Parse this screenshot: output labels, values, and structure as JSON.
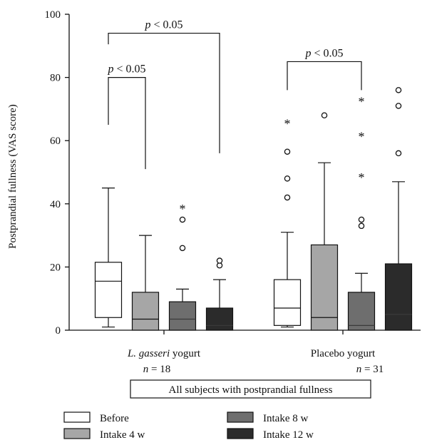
{
  "chart_data": {
    "type": "boxplot",
    "title": "",
    "ylabel": "Postprandial fullness (VAS score)",
    "ylim": [
      0,
      100
    ],
    "yticks": [
      0,
      20,
      40,
      60,
      80,
      100
    ],
    "grid": false,
    "legend_position": "bottom",
    "series": [
      {
        "name": "Before",
        "color": "#ffffff"
      },
      {
        "name": "Intake 4 w",
        "color": "#a6a6a6"
      },
      {
        "name": "Intake 8 w",
        "color": "#6e6e6e"
      },
      {
        "name": "Intake 12 w",
        "color": "#2b2b2b"
      }
    ],
    "groups": [
      {
        "name_italic": "L. gasseri",
        "name_rest": " yogurt",
        "n_label": "n",
        "n_value": "= 18",
        "boxes": [
          {
            "series": "Before",
            "whisker_low": 1,
            "q1": 4,
            "median": 15.5,
            "q3": 21.5,
            "whisker_high": 45,
            "outliers": [],
            "extremes": []
          },
          {
            "series": "Intake 4 w",
            "whisker_low": 0,
            "q1": 0,
            "median": 3.5,
            "q3": 12,
            "whisker_high": 30,
            "outliers": [],
            "extremes": []
          },
          {
            "series": "Intake 8 w",
            "whisker_low": 0,
            "q1": 0,
            "median": 3.5,
            "q3": 9,
            "whisker_high": 13,
            "outliers": [
              26,
              35
            ],
            "extremes": [
              39
            ]
          },
          {
            "series": "Intake 12 w",
            "whisker_low": 0,
            "q1": 0,
            "median": 1.5,
            "q3": 7,
            "whisker_high": 16,
            "outliers": [
              20.5,
              22
            ],
            "extremes": []
          }
        ]
      },
      {
        "name_italic": "",
        "name_rest": "Placebo yogurt",
        "n_label": "n",
        "n_value": "= 31",
        "boxes": [
          {
            "series": "Before",
            "whisker_low": 1,
            "q1": 1.5,
            "median": 7,
            "q3": 16,
            "whisker_high": 31,
            "outliers": [
              42,
              48,
              56.5
            ],
            "extremes": [
              66
            ]
          },
          {
            "series": "Intake 4 w",
            "whisker_low": 0,
            "q1": 0,
            "median": 4,
            "q3": 27,
            "whisker_high": 53,
            "outliers": [
              68
            ],
            "extremes": []
          },
          {
            "series": "Intake 8 w",
            "whisker_low": 0,
            "q1": 0,
            "median": 1.5,
            "q3": 12,
            "whisker_high": 18,
            "outliers": [
              33,
              35
            ],
            "extremes": [
              49,
              62,
              73
            ]
          },
          {
            "series": "Intake 12 w",
            "whisker_low": 0,
            "q1": 0,
            "median": 5,
            "q3": 21,
            "whisker_high": 47,
            "outliers": [
              56,
              71,
              76
            ],
            "extremes": []
          }
        ]
      }
    ],
    "significance": [
      {
        "label_p": "p",
        "label_rest": " < 0.05",
        "from_group": 0,
        "from_box": 0,
        "to_group": 0,
        "to_box": 1,
        "top": 80,
        "from_low": 65,
        "to_low": 51
      },
      {
        "label_p": "p",
        "label_rest": " < 0.05",
        "from_group": 0,
        "from_box": 0,
        "to_group": 0,
        "to_box": 3,
        "top": 94,
        "from_low": 90.5,
        "to_low": 56
      },
      {
        "label_p": "p",
        "label_rest": " < 0.05",
        "from_group": 1,
        "from_box": 0,
        "to_group": 1,
        "to_box": 2,
        "top": 85,
        "from_low": 76,
        "to_low": 76
      }
    ],
    "caption": "All subjects with postprandial fullness",
    "outlier_symbol": "○",
    "extreme_symbol": "*"
  }
}
